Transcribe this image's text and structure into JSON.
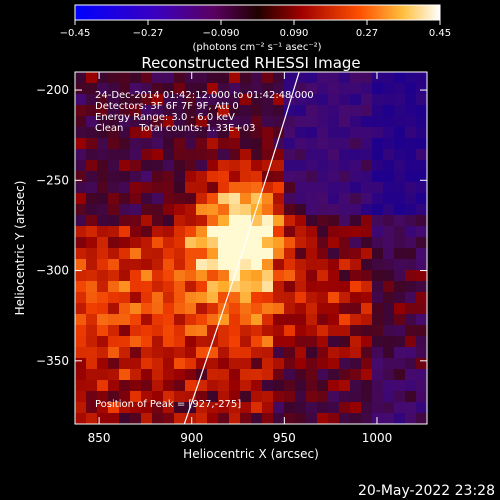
{
  "chart_data": {
    "type": "heatmap",
    "title": "Reconstructed RHESSI Image",
    "xlabel": "Heliocentric X (arcsec)",
    "ylabel": "Heliocentric Y (arcsec)",
    "xlim": [
      837,
      1027
    ],
    "ylim": [
      -385,
      -190
    ],
    "xticks": [
      850,
      900,
      950,
      1000
    ],
    "yticks": [
      -200,
      -250,
      -300,
      -350
    ],
    "xtick_labels": [
      "850",
      "900",
      "950",
      "1000"
    ],
    "ytick_labels": [
      "−200",
      "−250",
      "−300",
      "−350"
    ],
    "colorbar": {
      "range": [
        -0.45,
        0.45
      ],
      "ticks": [
        "−0.45",
        "−0.27",
        "−0.090",
        "0.090",
        "0.27",
        "0.45"
      ],
      "unit_label": "(photons cm⁻² s⁻¹ asec⁻²)"
    },
    "annotations": [
      "24-Dec-2014 01:42:12.000 to 01:42:48.000",
      "Detectors: 3F 6F 7F 9F, Att 0",
      "Energy Range: 3.0 - 6.0 keV",
      "Clean     Total counts: 1.33E+03"
    ],
    "peak_label": "Position of Peak = [927,-275]",
    "peak": [
      927,
      -275
    ],
    "limb_curve_x_at_top": 958,
    "limb_curve_x_at_bottom": 896
  },
  "footer_timestamp": "20-May-2022 23:28"
}
